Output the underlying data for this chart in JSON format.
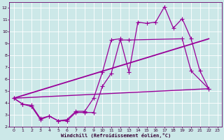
{
  "title": "",
  "xlabel": "Windchill (Refroidissement éolien,°C)",
  "bg_color": "#cce8e8",
  "grid_color": "#ffffff",
  "line_color": "#990099",
  "xlim": [
    -0.5,
    23.5
  ],
  "ylim": [
    2,
    12.5
  ],
  "xticks": [
    0,
    1,
    2,
    3,
    4,
    5,
    6,
    7,
    8,
    9,
    10,
    11,
    12,
    13,
    14,
    15,
    16,
    17,
    18,
    19,
    20,
    21,
    22,
    23
  ],
  "yticks": [
    2,
    3,
    4,
    5,
    6,
    7,
    8,
    9,
    10,
    11,
    12
  ],
  "series": [
    {
      "x": [
        0,
        1,
        2,
        3,
        4,
        5,
        6,
        7,
        8,
        9,
        10,
        11,
        12,
        13,
        14,
        15,
        16,
        17,
        18,
        19,
        20,
        21,
        22
      ],
      "y": [
        4.4,
        3.9,
        3.8,
        2.7,
        2.9,
        2.5,
        2.6,
        3.3,
        3.3,
        4.4,
        6.6,
        9.3,
        9.4,
        6.6,
        10.8,
        10.7,
        10.8,
        12.1,
        10.3,
        11.1,
        9.4,
        6.7,
        5.2
      ],
      "marker": "+",
      "markersize": 4,
      "linewidth": 0.9
    },
    {
      "x": [
        0,
        1,
        2,
        3,
        4,
        5,
        6,
        7,
        8,
        9,
        10,
        11,
        12,
        13,
        19,
        20,
        22
      ],
      "y": [
        4.4,
        3.9,
        3.7,
        2.6,
        2.9,
        2.5,
        2.5,
        3.2,
        3.2,
        3.2,
        5.4,
        6.5,
        9.3,
        9.3,
        9.4,
        6.7,
        5.2
      ],
      "marker": "+",
      "markersize": 4,
      "linewidth": 0.9
    },
    {
      "x": [
        0,
        22
      ],
      "y": [
        4.4,
        9.4
      ],
      "marker": null,
      "markersize": 0,
      "linewidth": 1.3
    },
    {
      "x": [
        0,
        22
      ],
      "y": [
        4.4,
        5.2
      ],
      "marker": null,
      "markersize": 0,
      "linewidth": 1.0
    }
  ]
}
